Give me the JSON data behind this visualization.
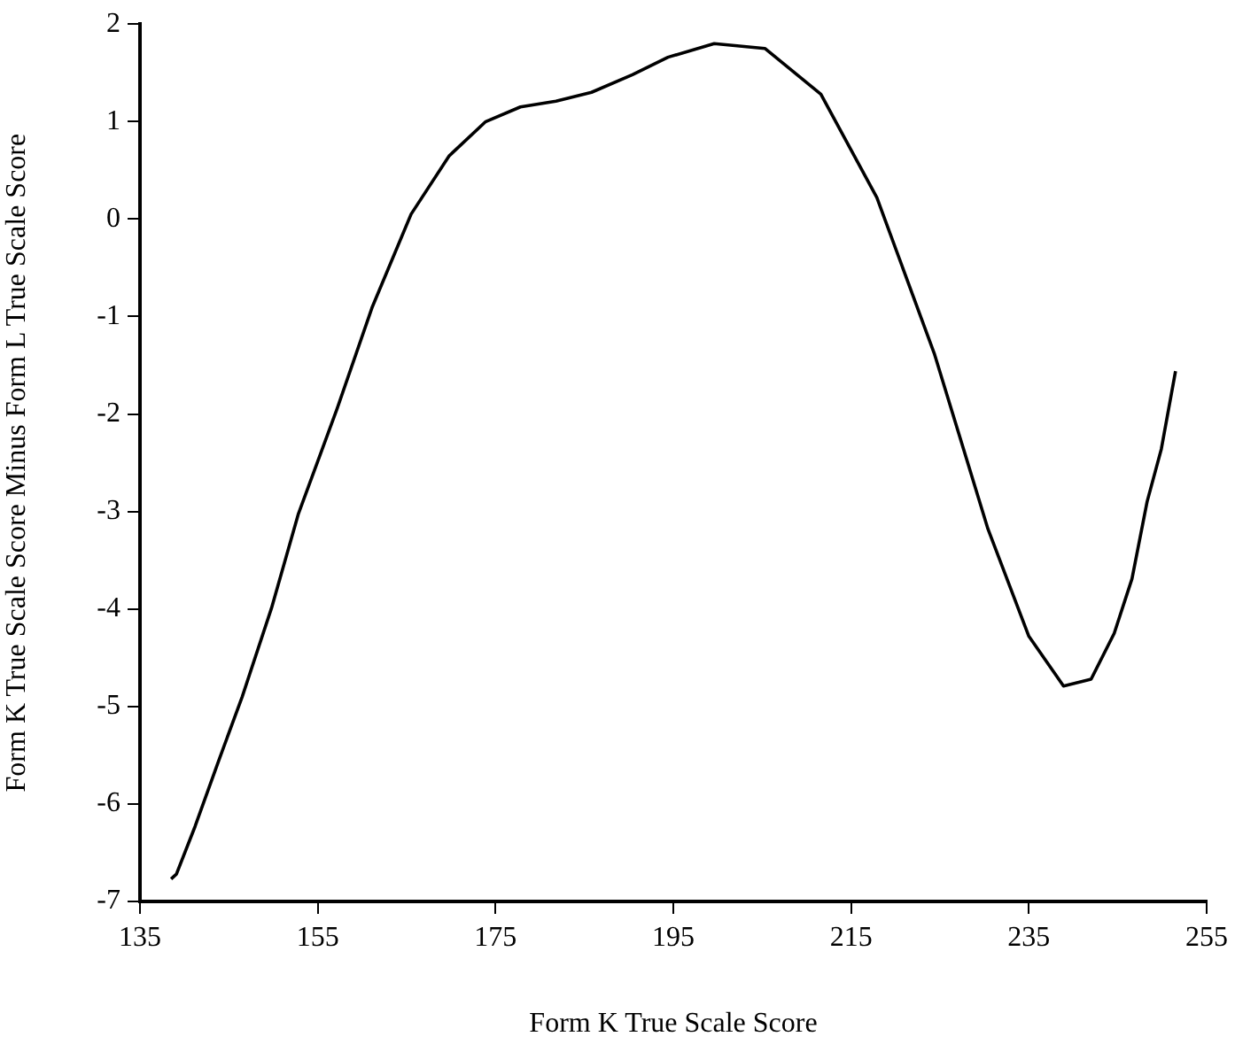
{
  "chart_data": {
    "type": "line",
    "xlabel": "Form K True Scale Score",
    "ylabel": "Form K True Scale Score Minus Form L True Scale Score",
    "xlim": [
      135,
      255
    ],
    "xticks": [
      135,
      155,
      175,
      195,
      215,
      235,
      255
    ],
    "ylim": [
      -7,
      2
    ],
    "yticks": [
      -7,
      -6,
      -5,
      -4,
      -3,
      -2,
      -1,
      0,
      1,
      2
    ],
    "series": [
      {
        "color": "#000000",
        "x": [
          138.5,
          139.1,
          141.2,
          143.8,
          146.5,
          149.8,
          152.8,
          157.2,
          161.1,
          165.5,
          169.8,
          173.9,
          177.8,
          181.8,
          185.8,
          190.4,
          194.4,
          199.6,
          205.3,
          211.6,
          217.9,
          224.4,
          230.4,
          235.0,
          238.9,
          242.0,
          244.6,
          246.6,
          248.3,
          249.9,
          251.5
        ],
        "values": [
          -6.77,
          -6.72,
          -6.23,
          -5.57,
          -4.9,
          -3.99,
          -3.03,
          -1.94,
          -0.91,
          0.05,
          0.65,
          1.0,
          1.15,
          1.21,
          1.3,
          1.48,
          1.66,
          1.8,
          1.75,
          1.28,
          0.22,
          -1.39,
          -3.18,
          -4.28,
          -4.79,
          -4.72,
          -4.25,
          -3.69,
          -2.9,
          -2.36,
          -1.56
        ]
      }
    ],
    "marker": "none",
    "line_style": "solid"
  }
}
